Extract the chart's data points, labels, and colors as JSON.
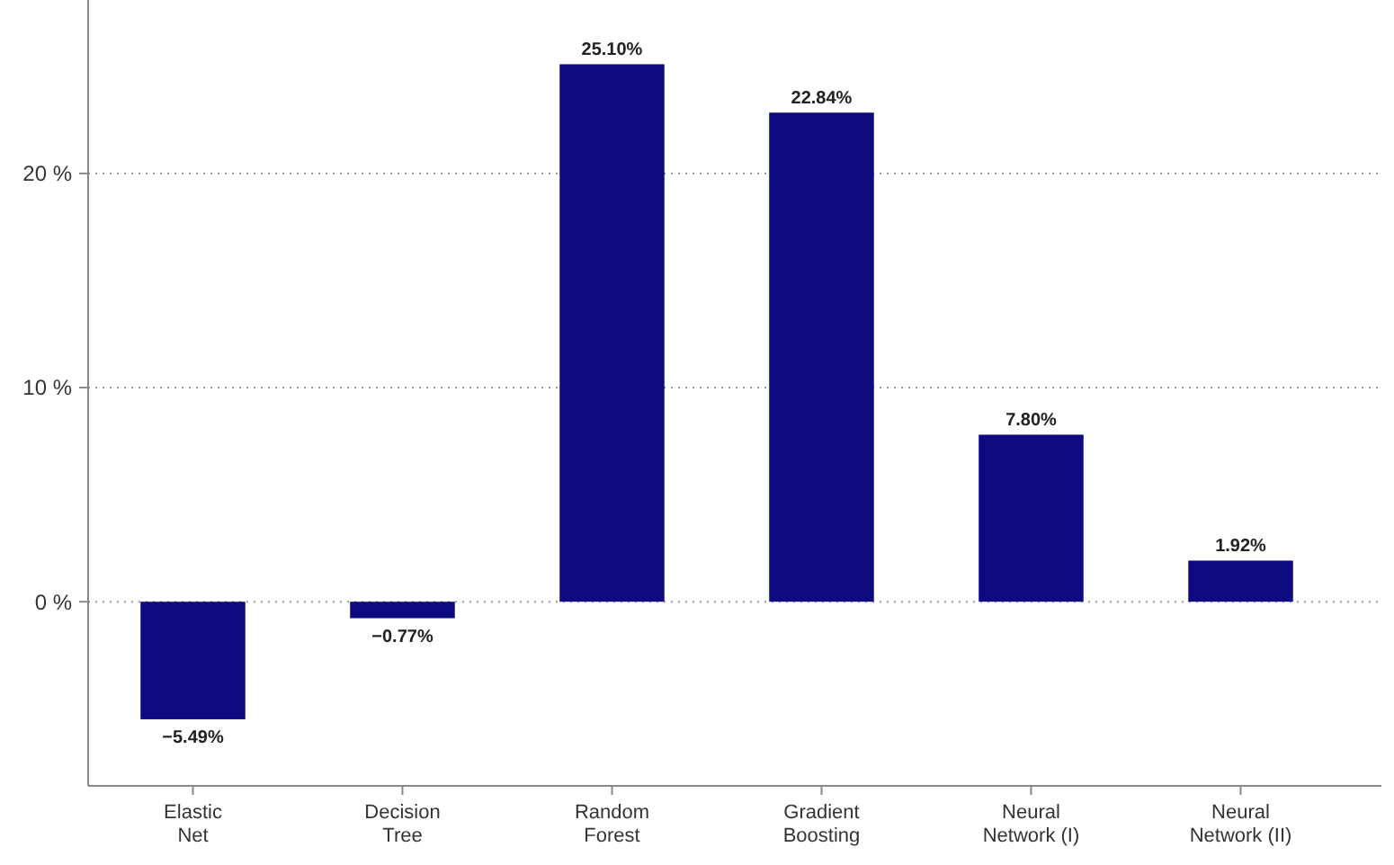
{
  "chart_data": {
    "type": "bar",
    "categories": [
      "Elastic Net",
      "Decision Tree",
      "Random Forest",
      "Gradient Boosting",
      "Neural Network (I)",
      "Neural Network (II)"
    ],
    "values": [
      -5.49,
      -0.77,
      25.1,
      22.84,
      7.8,
      1.92
    ],
    "value_labels": [
      "−5.49%",
      "−0.77%",
      "25.10%",
      "22.84%",
      "7.80%",
      "1.92%"
    ],
    "color": "#0e0a80",
    "ylim": [
      -8.6,
      28.1
    ],
    "yticks": [
      {
        "value": 0,
        "label": "0 %"
      },
      {
        "value": 10,
        "label": "10 %"
      },
      {
        "value": 20,
        "label": "20 %"
      }
    ],
    "grid": "y"
  }
}
